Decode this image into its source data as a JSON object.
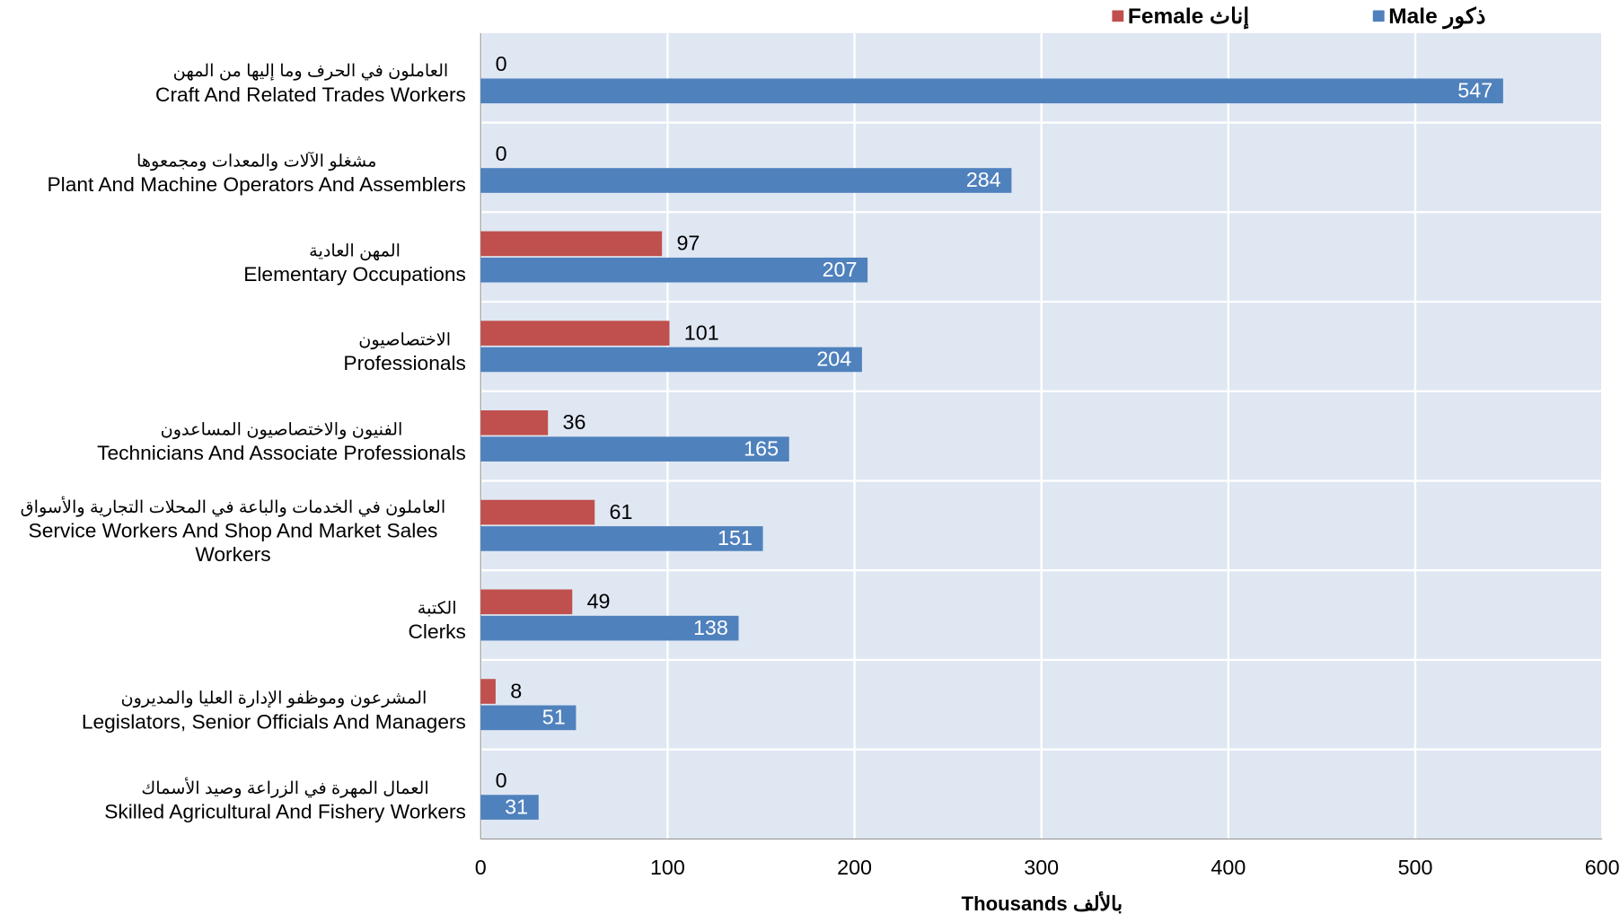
{
  "chart_data": {
    "type": "bar",
    "orientation": "horizontal",
    "categories": [
      "Craft And Related Trades Workers",
      "Plant And Machine Operators And Assemblers",
      "Elementary Occupations",
      "Professionals",
      "Technicians And Associate Professionals",
      "Service Workers And Shop And Market Sales Workers",
      "Clerks",
      "Legislators, Senior Officials And Managers",
      "Skilled Agricultural And Fishery Workers"
    ],
    "categories_ar": [
      "العاملون في الحرف وما إليها من المهن",
      "مشغلو الآلات والمعدات ومجمعوها",
      "المهن العادية",
      "الاختصاصيون",
      "الفنيون والاختصاصيون المساعدون",
      "العاملون في الخدمات والباعة في المحلات التجارية والأسواق",
      "الكتبة",
      "المشرعون وموظفو الإدارة العليا والمديرون",
      "العمال المهرة في الزراعة وصيد الأسماك"
    ],
    "series": [
      {
        "name": "Female إناث",
        "color": "#c0504d",
        "values": [
          0,
          0,
          97,
          101,
          36,
          61,
          49,
          8,
          0
        ]
      },
      {
        "name": "Male ذكور",
        "color": "#4f81bd",
        "values": [
          547,
          284,
          207,
          204,
          165,
          151,
          138,
          51,
          31
        ]
      }
    ],
    "x_label": "Thousands بالألف",
    "xlim": [
      0,
      600
    ],
    "xticks": [
      0,
      100,
      200,
      300,
      400,
      500,
      600
    ],
    "grid": true,
    "legend": "top-right",
    "background": "#dfe7f2"
  }
}
